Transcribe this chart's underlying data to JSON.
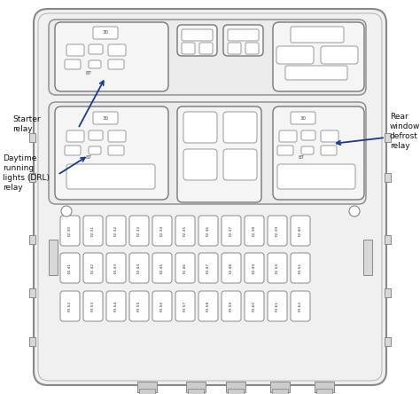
{
  "bg_color": "#ffffff",
  "line_color": "#666666",
  "blue_arrow": "#1a3a8c",
  "labels": {
    "starter_relay": "Starter\nrelay",
    "drl_relay": "Daytime\nrunning\nlights (DRL)\nrelay",
    "rear_defrost": "Rear\nwindow\ndefrost\nrelay"
  },
  "row1_fuses": [
    "F2.30",
    "F2.31",
    "F2.32",
    "F2.33",
    "F2.34",
    "F2.35",
    "F2.36",
    "F2.37",
    "F2.38",
    "F2.39",
    "F2.40"
  ],
  "row2_fuses": [
    "F2.41",
    "F2.42",
    "F2.43",
    "F2.44",
    "F2.45",
    "F2.46",
    "F2.47",
    "F2.48",
    "F2.49",
    "F2.50",
    "F2.51"
  ],
  "row3_fuses": [
    "F3.52",
    "F3.53",
    "F3.54",
    "F3.55",
    "F3.56",
    "F3.57",
    "F3.58",
    "F3.59",
    "F3.60",
    "F3.61",
    "F3.62"
  ]
}
